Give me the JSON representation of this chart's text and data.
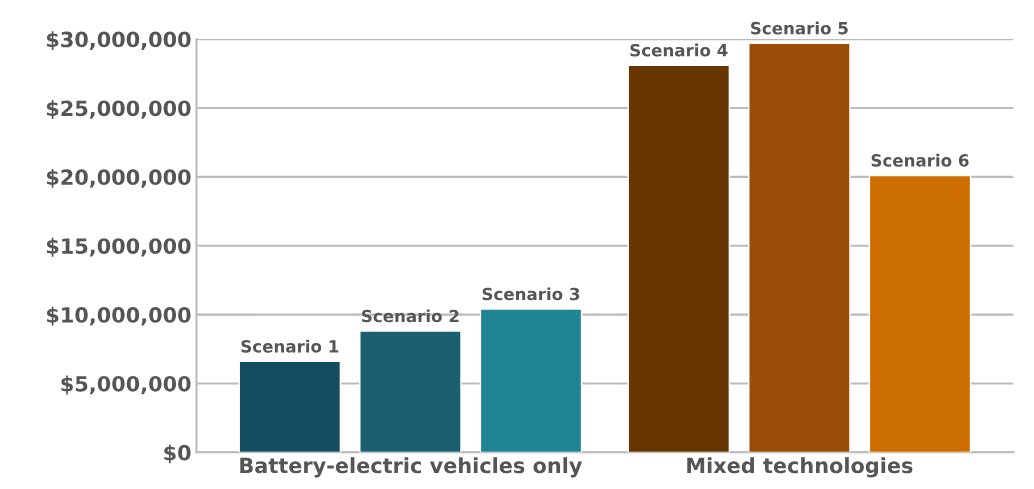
{
  "chart_data": {
    "type": "bar",
    "categories": [
      "Battery-electric vehicles only",
      "Mixed technologies"
    ],
    "series": [
      {
        "name": "Scenario 1",
        "color": "#134d5f",
        "values": [
          6600000,
          null
        ]
      },
      {
        "name": "Scenario 2",
        "color": "#1a6070",
        "values": [
          8800000,
          null
        ]
      },
      {
        "name": "Scenario 3",
        "color": "#208592",
        "values": [
          10400000,
          null
        ]
      },
      {
        "name": "Scenario 4",
        "color": "#673500",
        "values": [
          null,
          28100000
        ]
      },
      {
        "name": "Scenario 5",
        "color": "#9a4d06",
        "values": [
          null,
          29700000
        ]
      },
      {
        "name": "Scenario 6",
        "color": "#cc6f00",
        "values": [
          null,
          20100000
        ]
      }
    ],
    "ylim": [
      0,
      30000000
    ],
    "yticks": [
      {
        "value": 0,
        "label": "$0"
      },
      {
        "value": 5000000,
        "label": "$5,000,000"
      },
      {
        "value": 10000000,
        "label": "$10,000,000"
      },
      {
        "value": 15000000,
        "label": "$15,000,000"
      },
      {
        "value": 20000000,
        "label": "$20,000,000"
      },
      {
        "value": 25000000,
        "label": "$25,000,000"
      },
      {
        "value": 30000000,
        "label": "$30,000,000"
      }
    ],
    "grid": "y",
    "legend": false
  }
}
